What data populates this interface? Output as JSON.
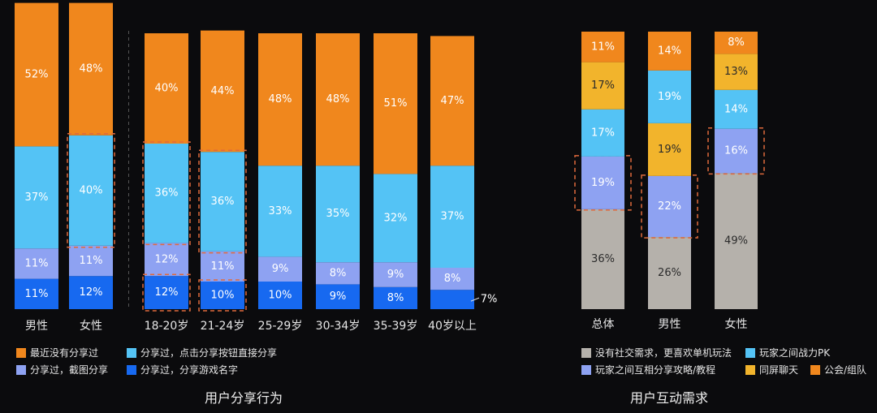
{
  "colors": {
    "orange": "#f0871d",
    "skyblue": "#54c3f5",
    "lavender": "#8ea2f2",
    "blue": "#1769f0",
    "gray": "#b5b1ab",
    "yellow": "#f2b42c",
    "highlight": "#e06a3c"
  },
  "chart_data": [
    {
      "type": "bar",
      "stacked": true,
      "title": "用户分享行为",
      "categories": [
        "男性",
        "女性",
        "18-20岁",
        "21-24岁",
        "25-29岁",
        "30-34岁",
        "35-39岁",
        "40岁以上"
      ],
      "series": [
        {
          "name": "分享过，分享游戏名字",
          "color": "#1769f0",
          "values": [
            11,
            12,
            12,
            10,
            10,
            9,
            8,
            7
          ],
          "labels": [
            "11%",
            "12%",
            "12%",
            "10%",
            "10%",
            "9%",
            "8%",
            "7%"
          ]
        },
        {
          "name": "分享过，截图分享",
          "color": "#8ea2f2",
          "values": [
            11,
            11,
            12,
            11,
            9,
            8,
            9,
            8
          ],
          "labels": [
            "11%",
            "11%",
            "12%",
            "11%",
            "9%",
            "8%",
            "9%",
            "8%"
          ]
        },
        {
          "name": "分享过，点击分享按钮直接分享",
          "color": "#54c3f5",
          "values": [
            37,
            40,
            36,
            36,
            33,
            35,
            32,
            37
          ],
          "labels": [
            "37%",
            "40%",
            "36%",
            "36%",
            "33%",
            "35%",
            "32%",
            "37%"
          ]
        },
        {
          "name": "最近没有分享过",
          "color": "#f0871d",
          "values": [
            52,
            48,
            40,
            44,
            48,
            48,
            51,
            47
          ],
          "labels": [
            "52%",
            "48%",
            "40%",
            "44%",
            "48%",
            "48%",
            "51%",
            "47%"
          ]
        }
      ],
      "highlights": [
        {
          "category_index": 1,
          "series_index": 2
        },
        {
          "category_index": 2,
          "series_index": 2
        },
        {
          "category_index": 3,
          "series_index": 2
        },
        {
          "category_index": 2,
          "series_index": 0
        },
        {
          "category_index": 3,
          "series_index": 0
        }
      ],
      "divider_after_index": 1,
      "legend": [
        {
          "name": "最近没有分享过",
          "color": "#f0871d"
        },
        {
          "name": "分享过，点击分享按钮直接分享",
          "color": "#54c3f5"
        },
        {
          "name": "分享过，截图分享",
          "color": "#8ea2f2"
        },
        {
          "name": "分享过，分享游戏名字",
          "color": "#1769f0"
        }
      ]
    },
    {
      "type": "bar",
      "stacked": true,
      "normalized": true,
      "title": "用户互动需求",
      "categories": [
        "总体",
        "男性",
        "女性"
      ],
      "stacks": [
        [
          {
            "series": "没有社交需求，更喜欢单机玩法",
            "value": 36,
            "label": "36%"
          },
          {
            "series": "玩家之间互相分享攻略/教程",
            "value": 19,
            "label": "19%"
          },
          {
            "series": "玩家之间战力PK",
            "value": 17,
            "label": "17%"
          },
          {
            "series": "同屏聊天",
            "value": 17,
            "label": "17%"
          },
          {
            "series": "公会/组队",
            "value": 11,
            "label": "11%"
          }
        ],
        [
          {
            "series": "没有社交需求，更喜欢单机玩法",
            "value": 26,
            "label": "26%"
          },
          {
            "series": "玩家之间互相分享攻略/教程",
            "value": 22,
            "label": "22%"
          },
          {
            "series": "同屏聊天",
            "value": 19,
            "label": "19%"
          },
          {
            "series": "玩家之间战力PK",
            "value": 19,
            "label": "19%"
          },
          {
            "series": "公会/组队",
            "value": 14,
            "label": "14%"
          }
        ],
        [
          {
            "series": "没有社交需求，更喜欢单机玩法",
            "value": 49,
            "label": "49%"
          },
          {
            "series": "玩家之间互相分享攻略/教程",
            "value": 16,
            "label": "16%"
          },
          {
            "series": "玩家之间战力PK",
            "value": 14,
            "label": "14%"
          },
          {
            "series": "同屏聊天",
            "value": 13,
            "label": "13%"
          },
          {
            "series": "公会/组队",
            "value": 8,
            "label": "8%"
          }
        ]
      ],
      "series_colors": {
        "没有社交需求，更喜欢单机玩法": "#b5b1ab",
        "玩家之间互相分享攻略/教程": "#8ea2f2",
        "玩家之间战力PK": "#54c3f5",
        "同屏聊天": "#f2b42c",
        "公会/组队": "#f0871d"
      },
      "highlight_series": "玩家之间互相分享攻略/教程",
      "legend": [
        {
          "name": "没有社交需求，更喜欢单机玩法",
          "color": "#b5b1ab"
        },
        {
          "name": "玩家之间战力PK",
          "color": "#54c3f5"
        },
        {
          "name": "玩家之间互相分享攻略/教程",
          "color": "#8ea2f2"
        },
        {
          "name": "同屏聊天",
          "color": "#f2b42c"
        },
        {
          "name": "公会/组队",
          "color": "#f0871d"
        }
      ]
    }
  ]
}
